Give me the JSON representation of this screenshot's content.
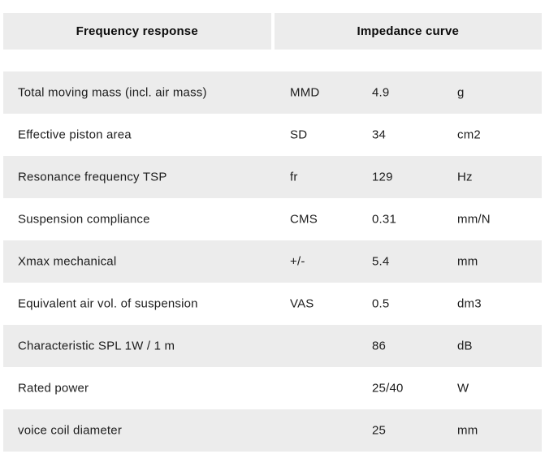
{
  "tabs": [
    {
      "label": "Frequency response"
    },
    {
      "label": "Impedance curve"
    }
  ],
  "table": {
    "rows": [
      {
        "label": "Total moving mass (incl. air mass)",
        "symbol": "MMD",
        "value": "4.9",
        "unit": "g"
      },
      {
        "label": "Effective piston area",
        "symbol": "SD",
        "value": "34",
        "unit": "cm2"
      },
      {
        "label": "Resonance frequency TSP",
        "symbol": "fr",
        "value": "129",
        "unit": "Hz"
      },
      {
        "label": "Suspension compliance",
        "symbol": "CMS",
        "value": "0.31",
        "unit": "mm/N"
      },
      {
        "label": "Xmax mechanical",
        "symbol": "+/-",
        "value": "5.4",
        "unit": "mm"
      },
      {
        "label": "Equivalent air vol. of suspension",
        "symbol": "VAS",
        "value": "0.5",
        "unit": "dm3"
      },
      {
        "label": "Characteristic SPL 1W / 1 m",
        "symbol": "",
        "value": "86",
        "unit": "dB"
      },
      {
        "label": "Rated power",
        "symbol": "",
        "value": "25/40",
        "unit": "W"
      },
      {
        "label": "voice coil diameter",
        "symbol": "",
        "value": "25",
        "unit": "mm"
      }
    ]
  },
  "colors": {
    "stripe": "#ececec",
    "tab_bg": "#ececec",
    "text": "#1d1d1d"
  }
}
